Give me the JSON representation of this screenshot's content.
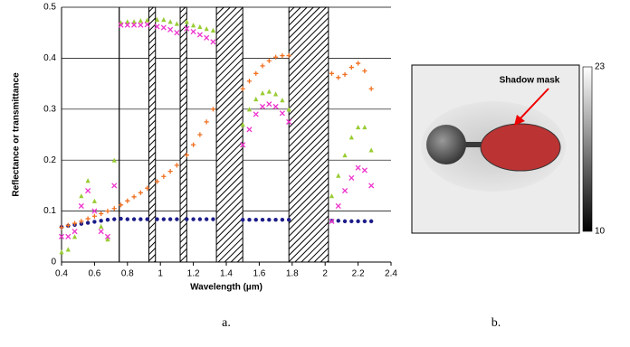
{
  "chart_data": {
    "type": "scatter",
    "xlabel": "Wavelength (µm)",
    "ylabel": "Reflectance or transmittance",
    "xlim": [
      0.4,
      2.4
    ],
    "ylim": [
      0,
      0.5
    ],
    "xticks": [
      0.4,
      0.6,
      0.8,
      1,
      1.2,
      1.4,
      1.6,
      1.8,
      2,
      2.2,
      2.4
    ],
    "yticks": [
      0,
      0.1,
      0.2,
      0.3,
      0.4,
      0.5
    ],
    "grid": true,
    "bands": [
      [
        0.93,
        0.97
      ],
      [
        1.12,
        1.16
      ],
      [
        1.34,
        1.5
      ],
      [
        1.78,
        2.02
      ]
    ],
    "vline": 0.75,
    "x": [
      0.4,
      0.44,
      0.48,
      0.52,
      0.56,
      0.6,
      0.64,
      0.68,
      0.72,
      0.76,
      0.8,
      0.84,
      0.88,
      0.92,
      0.98,
      1.02,
      1.06,
      1.1,
      1.16,
      1.2,
      1.24,
      1.28,
      1.32,
      1.5,
      1.54,
      1.58,
      1.62,
      1.66,
      1.7,
      1.74,
      1.78,
      2.04,
      2.08,
      2.12,
      2.16,
      2.2,
      2.24,
      2.28
    ],
    "series": [
      {
        "color": "#1c1c8a",
        "marker": "circle",
        "values": [
          0.069,
          0.071,
          0.073,
          0.075,
          0.077,
          0.079,
          0.081,
          0.083,
          0.084,
          0.085,
          0.084,
          0.084,
          0.084,
          0.084,
          0.084,
          0.084,
          0.084,
          0.084,
          0.084,
          0.084,
          0.084,
          0.084,
          0.084,
          0.083,
          0.083,
          0.083,
          0.083,
          0.083,
          0.083,
          0.083,
          0.083,
          0.081,
          0.081,
          0.08,
          0.08,
          0.08,
          0.08,
          0.08
        ]
      },
      {
        "color": "#f07020",
        "marker": "plus",
        "values": [
          0.068,
          0.072,
          0.076,
          0.08,
          0.085,
          0.09,
          0.095,
          0.1,
          0.105,
          0.112,
          0.12,
          0.128,
          0.136,
          0.145,
          0.158,
          0.168,
          0.178,
          0.19,
          0.21,
          0.23,
          0.25,
          0.275,
          0.3,
          0.34,
          0.355,
          0.37,
          0.385,
          0.395,
          0.402,
          0.405,
          0.405,
          0.37,
          0.362,
          0.368,
          0.382,
          0.39,
          0.375,
          0.34
        ]
      },
      {
        "color": "#99cc33",
        "marker": "triangle",
        "values": [
          0.02,
          0.025,
          0.05,
          0.13,
          0.16,
          0.12,
          0.07,
          0.045,
          0.2,
          0.47,
          0.472,
          0.472,
          0.474,
          0.475,
          0.476,
          0.476,
          0.472,
          0.468,
          0.472,
          0.465,
          0.462,
          0.458,
          0.455,
          0.27,
          0.3,
          0.32,
          0.332,
          0.335,
          0.33,
          0.318,
          0.3,
          0.13,
          0.17,
          0.21,
          0.245,
          0.265,
          0.265,
          0.22
        ]
      },
      {
        "color": "#ee33cc",
        "marker": "x",
        "values": [
          0.05,
          0.05,
          0.06,
          0.11,
          0.14,
          0.1,
          0.06,
          0.05,
          0.15,
          0.465,
          0.465,
          0.465,
          0.465,
          0.466,
          0.462,
          0.46,
          0.456,
          0.45,
          0.458,
          0.452,
          0.446,
          0.44,
          0.432,
          0.23,
          0.26,
          0.29,
          0.305,
          0.31,
          0.305,
          0.292,
          0.275,
          0.08,
          0.11,
          0.14,
          0.165,
          0.185,
          0.18,
          0.15
        ]
      }
    ]
  },
  "panel_b": {
    "annotation": "Shadow mask",
    "colorbar_lim": [
      10,
      23
    ],
    "colorbar_labels": [
      23,
      10
    ]
  },
  "captions": [
    "a.",
    "b."
  ]
}
